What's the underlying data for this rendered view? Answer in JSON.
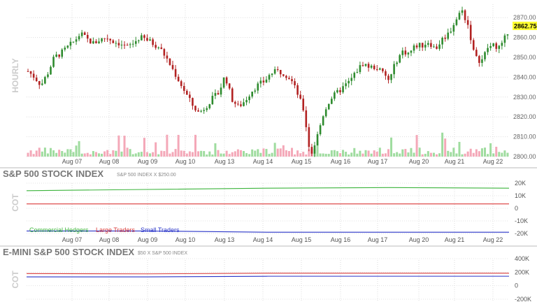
{
  "colors": {
    "up": "#2e8b2e",
    "down": "#b22222",
    "vol_up": "#9fdc9f",
    "vol_down": "#f4a8b8",
    "commercial": "#3cb43c",
    "large": "#d93a3a",
    "small": "#2a35c8",
    "price_badge": "#ffff33"
  },
  "top_panel": {
    "side_label": "HOURLY",
    "price_label": "2862.75",
    "y_ticks": [
      "2870.00",
      "2860.00",
      "2850.00",
      "2840.00",
      "2830.00",
      "2820.00",
      "2810.00",
      "2800.00"
    ],
    "x_ticks": [
      "Aug 07",
      "Aug 08",
      "Aug 09",
      "Aug 10",
      "Aug 13",
      "Aug 14",
      "Aug 15",
      "Aug 16",
      "Aug 17",
      "Aug 20",
      "Aug 21",
      "Aug 22"
    ]
  },
  "cot1": {
    "title": "S&P 500 STOCK INDEX",
    "subtitle": "S&P 500 INDEX X $250.00",
    "side_label": "COT",
    "y_ticks": [
      "20K",
      "10K",
      "0",
      "-10K",
      "-20K"
    ],
    "legend": [
      "Commercial Hedgers",
      "Large Traders",
      "Small Traders"
    ],
    "x_ticks": [
      "Aug 07",
      "Aug 08",
      "Aug 09",
      "Aug 10",
      "Aug 13",
      "Aug 14",
      "Aug 15",
      "Aug 16",
      "Aug 17",
      "Aug 20",
      "Aug 21",
      "Aug 22"
    ]
  },
  "cot2": {
    "title": "E-MINI S&P 500 STOCK INDEX",
    "subtitle": "$50 X S&P 500 INDEX",
    "side_label": "COT",
    "y_ticks": [
      "400K",
      "200K",
      "0",
      "-200K"
    ]
  },
  "chart_data": [
    {
      "type": "line",
      "chart_kind": "candlestick hourly price with volume",
      "ylabel": "HOURLY",
      "ylim": [
        2800,
        2875
      ],
      "last_price": 2862.75,
      "x_categories": [
        "Aug 07",
        "Aug 08",
        "Aug 09",
        "Aug 10",
        "Aug 13",
        "Aug 14",
        "Aug 15",
        "Aug 16",
        "Aug 17",
        "Aug 20",
        "Aug 21",
        "Aug 22"
      ],
      "approx_close_path": [
        2843,
        2840,
        2836,
        2842,
        2850,
        2852,
        2855,
        2858,
        2862,
        2859,
        2857,
        2859,
        2860,
        2858,
        2857,
        2855,
        2857,
        2860,
        2859,
        2857,
        2855,
        2850,
        2844,
        2838,
        2832,
        2826,
        2822,
        2825,
        2829,
        2832,
        2841,
        2829,
        2825,
        2828,
        2833,
        2836,
        2838,
        2842,
        2843,
        2842,
        2839,
        2832,
        2823,
        2800,
        2810,
        2822,
        2829,
        2832,
        2835,
        2838,
        2843,
        2847,
        2845,
        2845,
        2842,
        2838,
        2848,
        2853,
        2852,
        2856,
        2856,
        2858,
        2854,
        2859,
        2862,
        2868,
        2874,
        2866,
        2850,
        2848,
        2855,
        2856,
        2855,
        2863
      ]
    },
    {
      "type": "line",
      "title": "S&P 500 STOCK INDEX",
      "ylim": [
        -20000,
        20000
      ],
      "series": [
        {
          "name": "Commercial Hedgers",
          "values": [
            14000,
            15000,
            16000,
            16500,
            16000
          ]
        },
        {
          "name": "Large Traders",
          "values": [
            3500,
            3500,
            3500,
            3500,
            3500
          ]
        },
        {
          "name": "Small Traders",
          "values": [
            -18000,
            -18000,
            -19000,
            -19000,
            -19000
          ]
        }
      ]
    },
    {
      "type": "line",
      "title": "E-MINI S&P 500 STOCK INDEX",
      "ylim": [
        -200000,
        400000
      ],
      "series": [
        {
          "values": [
            180000,
            175000,
            185000,
            185000,
            185000
          ]
        },
        {
          "values": [
            130000,
            130000,
            140000,
            140000,
            140000
          ]
        }
      ]
    }
  ]
}
